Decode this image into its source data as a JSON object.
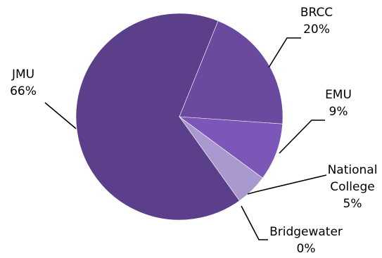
{
  "chart_data": {
    "type": "pie",
    "slices": [
      {
        "name": "JMU",
        "label": "66%",
        "value": 66,
        "color": "#5b3f8a"
      },
      {
        "name": "BRCC",
        "label": "20%",
        "value": 20,
        "color": "#6a4a9f"
      },
      {
        "name": "EMU",
        "label": "9%",
        "value": 9,
        "color": "#7c57b7"
      },
      {
        "name": "National College",
        "label": "5%",
        "value": 5,
        "color": "#a999cf"
      },
      {
        "name": "Bridgewater",
        "label": "0%",
        "value": 0,
        "color": "#c6bde0"
      }
    ],
    "legend": "none"
  }
}
